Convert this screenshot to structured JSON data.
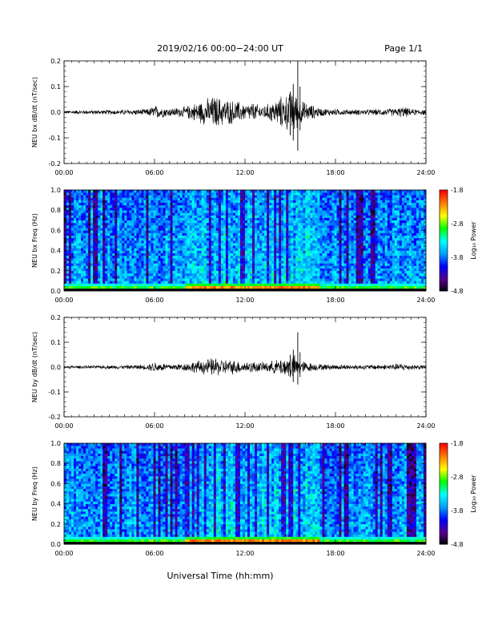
{
  "header": {
    "title": "2019/02/16  00:00−24:00 UT",
    "page": "Page 1/1"
  },
  "xaxis": {
    "label": "Universal Time (hh:mm)",
    "ticks": [
      "00:00",
      "06:00",
      "12:00",
      "18:00",
      "24:00"
    ],
    "range_hours": [
      0,
      24
    ]
  },
  "colorbar": {
    "label": "Log₁₀ Power",
    "ticks": [
      "-1.8",
      "-2.8",
      "-3.8",
      "-4.8"
    ],
    "range": [
      -4.8,
      -1.8
    ],
    "colormap": [
      "#000000",
      "#5a0090",
      "#0000ff",
      "#00a0ff",
      "#00ffff",
      "#00ff00",
      "#ffff00",
      "#ff8000",
      "#ff0000"
    ]
  },
  "chart_data": [
    {
      "type": "line",
      "ylabel": "NEU bx dB/dt (nT/sec)",
      "yticks": [
        "0.2",
        "0.1",
        "0.0",
        "-0.1",
        "-0.2"
      ],
      "ylim": [
        -0.2,
        0.2
      ],
      "xlim": [
        0,
        24
      ],
      "envelope": {
        "x_hours": [
          0,
          2,
          4,
          5.5,
          6,
          7,
          8,
          9,
          10,
          10.5,
          11,
          11.5,
          12,
          12.5,
          13,
          13.5,
          14,
          14.5,
          15,
          15.3,
          15.5,
          16,
          16.5,
          17,
          18,
          19,
          20,
          21,
          22,
          22.5,
          23,
          24
        ],
        "amplitude": [
          0.006,
          0.008,
          0.009,
          0.012,
          0.025,
          0.015,
          0.02,
          0.04,
          0.06,
          0.05,
          0.045,
          0.04,
          0.03,
          0.035,
          0.025,
          0.03,
          0.045,
          0.06,
          0.07,
          0.08,
          0.05,
          0.035,
          0.025,
          0.015,
          0.012,
          0.01,
          0.01,
          0.012,
          0.014,
          0.02,
          0.012,
          0.01
        ]
      },
      "spikes": [
        {
          "x": 15.0,
          "max": 0.08,
          "min": -0.09
        },
        {
          "x": 15.2,
          "max": 0.11,
          "min": -0.11
        },
        {
          "x": 15.5,
          "max": 0.2,
          "min": -0.15
        },
        {
          "x": 15.65,
          "max": 0.1,
          "min": -0.07
        }
      ]
    },
    {
      "type": "heatmap",
      "ylabel": "NEU bx Freq (Hz)",
      "yticks": [
        "1.0",
        "0.8",
        "0.6",
        "0.4",
        "0.2",
        "0.0"
      ],
      "ylim": [
        0,
        1
      ],
      "xlim": [
        0,
        24
      ],
      "color_range": [
        -4.8,
        -1.8
      ]
    },
    {
      "type": "line",
      "ylabel": "NEU by dB/dt (nT/sec)",
      "yticks": [
        "0.2",
        "0.1",
        "0.0",
        "-0.1",
        "-0.2"
      ],
      "ylim": [
        -0.2,
        0.2
      ],
      "xlim": [
        0,
        24
      ],
      "envelope": {
        "x_hours": [
          0,
          2,
          4,
          5.5,
          6,
          7,
          8,
          9,
          10,
          10.5,
          11,
          11.5,
          12,
          12.5,
          13,
          13.5,
          14,
          14.5,
          15,
          15.3,
          15.5,
          16,
          16.5,
          17,
          18,
          19,
          20,
          21,
          22,
          22.5,
          23,
          24
        ],
        "amplitude": [
          0.005,
          0.006,
          0.007,
          0.01,
          0.02,
          0.012,
          0.015,
          0.025,
          0.035,
          0.03,
          0.028,
          0.025,
          0.02,
          0.022,
          0.018,
          0.02,
          0.025,
          0.035,
          0.04,
          0.045,
          0.03,
          0.02,
          0.015,
          0.012,
          0.01,
          0.009,
          0.009,
          0.01,
          0.012,
          0.015,
          0.01,
          0.008
        ]
      },
      "spikes": [
        {
          "x": 15.0,
          "max": 0.05,
          "min": -0.04
        },
        {
          "x": 15.2,
          "max": 0.07,
          "min": -0.06
        },
        {
          "x": 15.5,
          "max": 0.14,
          "min": -0.07
        },
        {
          "x": 15.65,
          "max": 0.06,
          "min": -0.04
        }
      ]
    },
    {
      "type": "heatmap",
      "ylabel": "NEU by Freq (Hz)",
      "yticks": [
        "1.0",
        "0.8",
        "0.6",
        "0.4",
        "0.2",
        "0.0"
      ],
      "ylim": [
        0,
        1
      ],
      "xlim": [
        0,
        24
      ],
      "color_range": [
        -4.8,
        -1.8
      ]
    }
  ]
}
